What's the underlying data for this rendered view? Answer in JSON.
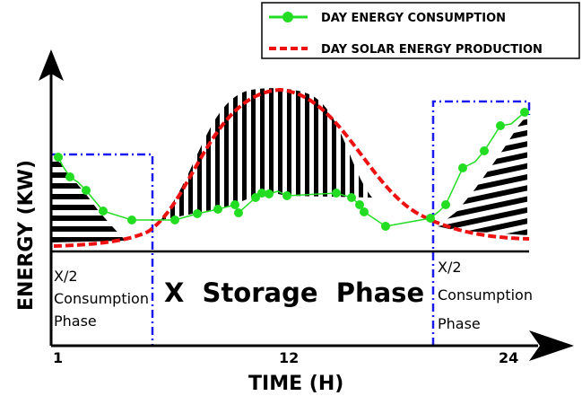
{
  "legend": {
    "consumption_label": "DAY ENERGY CONSUMPTION",
    "solar_label": "DAY SOLAR ENERGY PRODUCTION",
    "consumption_color": "#22dd22",
    "solar_color": "#ee1111"
  },
  "axes": {
    "y_title": "ENERGY (KW)",
    "x_title": "TIME (H)",
    "x_ticks": [
      "1",
      "12",
      "24"
    ]
  },
  "phases": {
    "left": [
      "X/2",
      "Consumption",
      "Phase"
    ],
    "middle": "X  Storage  Phase",
    "right": [
      "X/2",
      "Consumption",
      "Phase"
    ],
    "box_color": "#1a1aee"
  }
}
